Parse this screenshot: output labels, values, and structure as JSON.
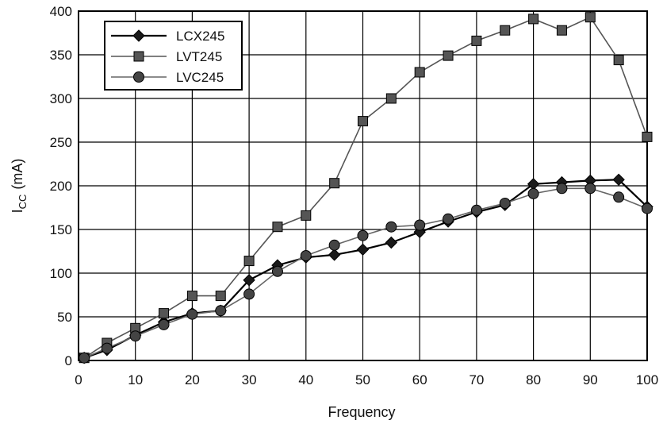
{
  "chart_data": {
    "type": "line",
    "xlabel": "Frequency",
    "ylabel_main": "I",
    "ylabel_sub": "CC",
    "ylabel_unit": "(mA)",
    "xlim": [
      0,
      100
    ],
    "ylim": [
      0,
      400
    ],
    "x_ticks": [
      "0",
      "10",
      "20",
      "30",
      "40",
      "50",
      "60",
      "70",
      "80",
      "90",
      "100"
    ],
    "y_ticks": [
      "0",
      "50",
      "100",
      "150",
      "200",
      "250",
      "300",
      "350",
      "400"
    ],
    "grid": true,
    "legend_position": "top-left",
    "x": [
      1,
      5,
      10,
      15,
      20,
      25,
      30,
      35,
      40,
      45,
      50,
      55,
      60,
      65,
      70,
      75,
      80,
      85,
      90,
      95,
      100
    ],
    "series": [
      {
        "name": "LCX245",
        "marker": "diamond",
        "line_color": "#000000",
        "values": [
          3,
          12,
          29,
          44,
          54,
          57,
          92,
          109,
          118,
          121,
          127,
          135,
          147,
          159,
          170,
          178,
          202,
          204,
          206,
          207,
          176
        ]
      },
      {
        "name": "LVT245",
        "marker": "square",
        "line_color": "#555555",
        "values": [
          3,
          20,
          37,
          54,
          74,
          74,
          114,
          153,
          166,
          203,
          274,
          300,
          330,
          349,
          366,
          378,
          391,
          378,
          393,
          344,
          256
        ]
      },
      {
        "name": "LVC245",
        "marker": "circle",
        "line_color": "#666666",
        "values": [
          3,
          14,
          28,
          41,
          53,
          57,
          76,
          102,
          120,
          132,
          143,
          153,
          155,
          162,
          172,
          180,
          191,
          197,
          197,
          187,
          174
        ]
      }
    ]
  }
}
